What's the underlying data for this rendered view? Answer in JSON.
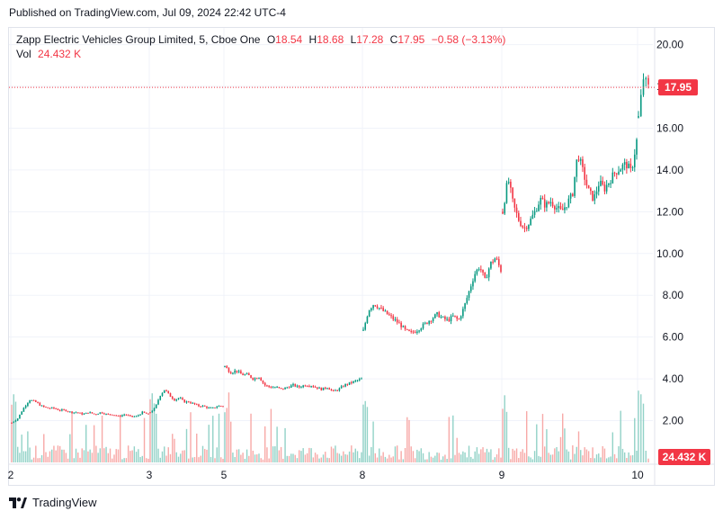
{
  "published_text": "Published on TradingView.com, Jul 09, 2024 22:42 UTC-4",
  "legend": {
    "symbol_title": "Zapp Electric Vehicles Group Limited, 5, Cboe One",
    "o_label": "O",
    "o_value": "18.54",
    "h_label": "H",
    "h_value": "18.68",
    "l_label": "L",
    "l_value": "17.28",
    "c_label": "C",
    "c_value": "17.95",
    "change": "−0.58 (−3.13%)",
    "vol_label": "Vol",
    "vol_value": "24.432 K"
  },
  "footer": {
    "brand": "TradingView"
  },
  "colors": {
    "up": "#089981",
    "down": "#f23645",
    "grid": "#f0f3fa",
    "text": "#131722",
    "up_vol": "#92d2c7",
    "down_vol": "#f7a9a7"
  },
  "chart_data": {
    "type": "candlestick",
    "timeframe": "5",
    "y_axis": {
      "ticks": [
        "2.00",
        "4.00",
        "6.00",
        "8.00",
        "10.00",
        "12.00",
        "14.00",
        "16.00",
        "18.00",
        "20.00"
      ],
      "ylim": [
        0,
        20.8
      ]
    },
    "x_axis": {
      "ticks": [
        "2",
        "3",
        "5",
        "8",
        "9",
        "10"
      ]
    },
    "last_price_label": "17.95",
    "last_volume_label": "24.432 K",
    "sessions": [
      {
        "label": "2",
        "close_path": [
          1.9,
          2.1,
          2.6,
          3.0,
          2.9,
          2.7,
          2.6,
          2.6,
          2.5,
          2.5,
          2.4,
          2.4,
          2.3,
          2.4,
          2.3,
          2.4,
          2.3,
          2.3,
          2.2,
          2.3,
          2.2,
          2.2,
          2.4,
          2.3
        ]
      },
      {
        "label": "3",
        "close_path": [
          2.4,
          2.6,
          3.2,
          3.5,
          3.2,
          3.0,
          3.1,
          2.9,
          2.9,
          2.8,
          2.7,
          2.7,
          2.6,
          2.6,
          2.7,
          2.7
        ]
      },
      {
        "label": "5",
        "close_path": [
          4.6,
          4.3,
          4.4,
          4.2,
          4.2,
          4.0,
          4.1,
          3.7,
          3.6,
          3.6,
          3.5,
          3.6,
          3.7,
          3.6,
          3.7,
          3.7,
          3.6,
          3.5,
          3.6,
          3.4,
          3.5,
          3.7,
          3.8,
          3.9,
          4.0
        ]
      },
      {
        "label": "8",
        "close_path": [
          6.3,
          7.3,
          7.6,
          7.4,
          7.2,
          7.0,
          6.8,
          6.6,
          6.3,
          6.2,
          6.3,
          6.5,
          6.7,
          6.9,
          7.1,
          6.9,
          6.8,
          7.0,
          6.8,
          7.4,
          8.2,
          9.0,
          9.4,
          8.7,
          9.5,
          9.8,
          9.2
        ]
      },
      {
        "label": "9",
        "close_path": [
          12.0,
          13.6,
          12.3,
          11.6,
          11.2,
          11.5,
          12.0,
          12.6,
          12.3,
          12.5,
          12.2,
          12.0,
          12.4,
          12.8,
          14.8,
          13.9,
          13.0,
          12.6,
          13.4,
          13.1,
          13.5,
          13.9,
          14.1,
          14.3,
          13.9,
          15.4
        ]
      },
      {
        "label": "10",
        "close_path": [
          16.5,
          18.4,
          17.95
        ]
      }
    ]
  }
}
